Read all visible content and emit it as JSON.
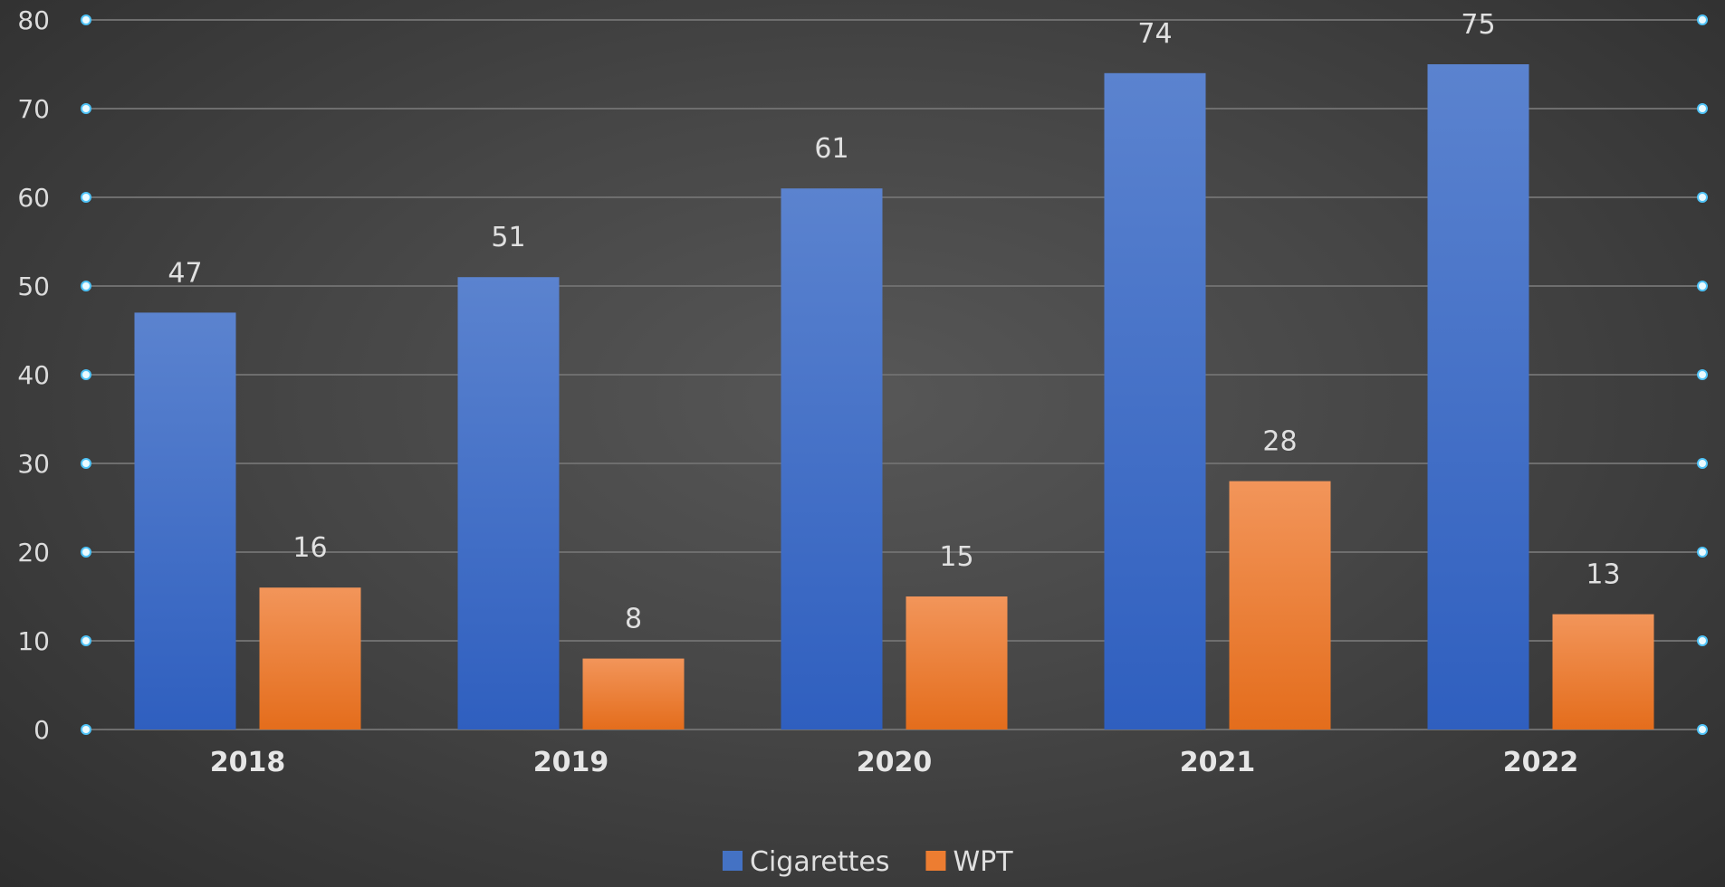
{
  "chart_data": {
    "type": "bar",
    "categories": [
      "2018",
      "2019",
      "2020",
      "2021",
      "2022"
    ],
    "series": [
      {
        "name": "Cigarettes",
        "values": [
          47,
          51,
          61,
          74,
          75
        ],
        "color": "#4472c4"
      },
      {
        "name": "WPT",
        "values": [
          16,
          8,
          15,
          28,
          13
        ],
        "color": "#ed7d31"
      }
    ],
    "ylim": [
      0,
      80
    ],
    "yticks": [
      0,
      10,
      20,
      30,
      40,
      50,
      60,
      70,
      80
    ],
    "grid": true,
    "data_labels": true,
    "legend": "bottom-center",
    "title": "",
    "xlabel": "",
    "ylabel": ""
  }
}
